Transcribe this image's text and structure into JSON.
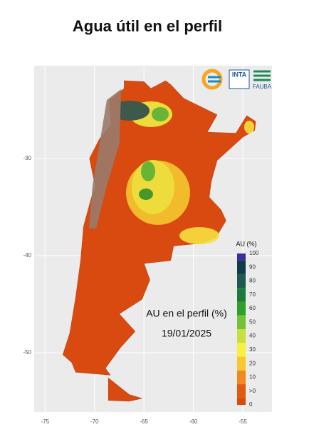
{
  "header": {
    "title": "Agua útil en el perfil"
  },
  "logos": [
    "INTA",
    "FAUBA"
  ],
  "map": {
    "xlim": [
      -76.1,
      -52.05
    ],
    "ylim": [
      -56.1,
      -20.45
    ],
    "xticks": [
      -75,
      -70,
      -65,
      -60,
      -55
    ],
    "yticks": [
      -30,
      -40,
      -50
    ],
    "annotation": [
      "AU en el perfil (%)",
      "19/01/2025"
    ],
    "legend": {
      "title": "AU (%)",
      "labels": [
        "100",
        "90",
        "80",
        "70",
        "60",
        "50",
        "40",
        "30",
        "20",
        "10",
        ">0",
        "0"
      ],
      "colors": [
        "#3b2fa0",
        "#123a4a",
        "#1c5a50",
        "#1e7a3c",
        "#2ea02a",
        "#74c23a",
        "#c8e03c",
        "#f8f040",
        "#f8c830",
        "#f08a20",
        "#e05a10",
        "#d84a10"
      ]
    }
  }
}
